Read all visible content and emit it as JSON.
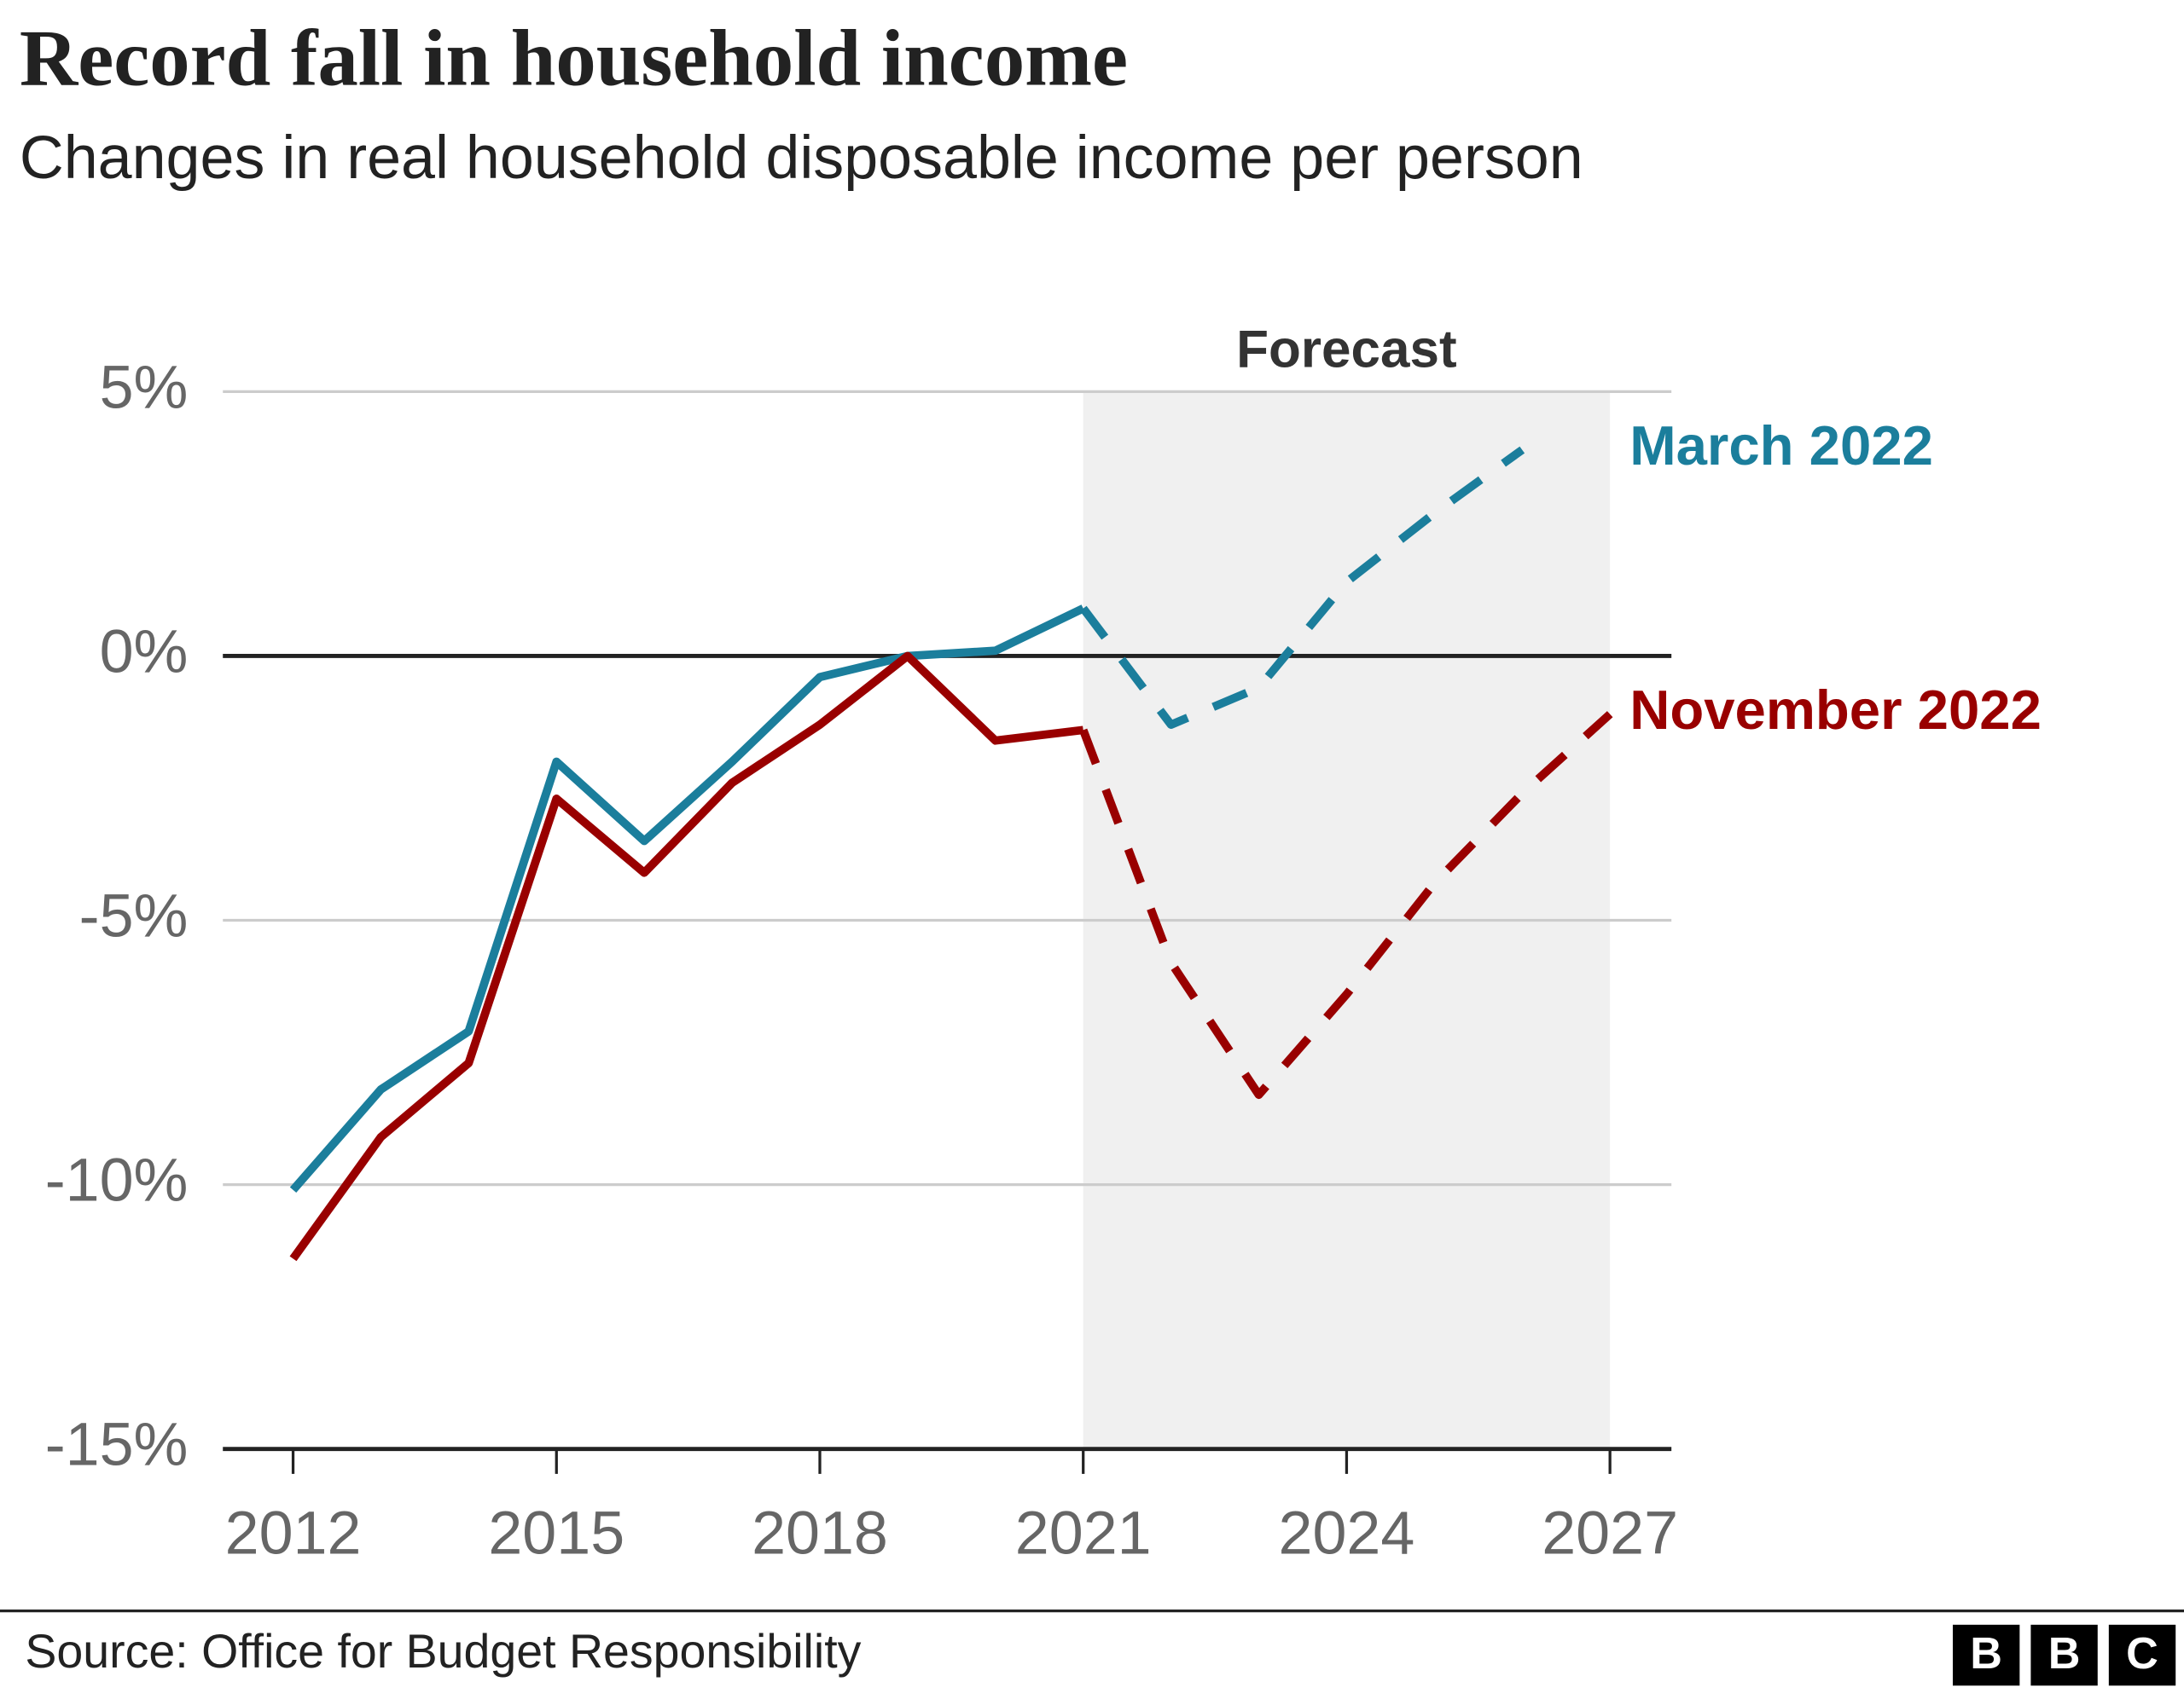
{
  "chart_data": {
    "type": "line",
    "title": "Record fall in household income",
    "subtitle": "Changes in real household disposable income per person",
    "x": [
      2012,
      2013,
      2014,
      2015,
      2016,
      2017,
      2018,
      2019,
      2020,
      2021,
      2022,
      2023,
      2024,
      2025,
      2026,
      2027
    ],
    "series": [
      {
        "name": "March 2022",
        "color": "#1b7e9c",
        "values": [
          -10.1,
          -8.2,
          -7.1,
          -2.0,
          -3.5,
          -2.0,
          -0.4,
          0,
          0.1,
          0.9,
          -1.3,
          -0.6,
          1.4,
          2.7,
          3.9,
          null
        ]
      },
      {
        "name": "November 2022",
        "color": "#990000",
        "values": [
          -11.4,
          -9.1,
          -7.7,
          -2.7,
          -4.1,
          -2.4,
          -1.3,
          0,
          -1.6,
          -1.4,
          -5.8,
          -8.3,
          -6.4,
          -4.3,
          -2.6,
          -1.1
        ]
      }
    ],
    "forecast": {
      "label": "Forecast",
      "range": [
        2021,
        2027
      ]
    },
    "xlim": [
      2011.2,
      2027.7
    ],
    "xticks": [
      2012,
      2015,
      2018,
      2021,
      2024,
      2027
    ],
    "ylim": [
      -15,
      5
    ],
    "yticks": [
      {
        "value": 5,
        "label": "5%"
      },
      {
        "value": 0,
        "label": "0%"
      },
      {
        "value": -5,
        "label": "-5%"
      },
      {
        "value": -10,
        "label": "-10%"
      },
      {
        "value": -15,
        "label": "-15%"
      }
    ],
    "grid": true,
    "source": "Source: Office for Budget Responsibility",
    "logo": [
      "B",
      "B",
      "C"
    ]
  }
}
